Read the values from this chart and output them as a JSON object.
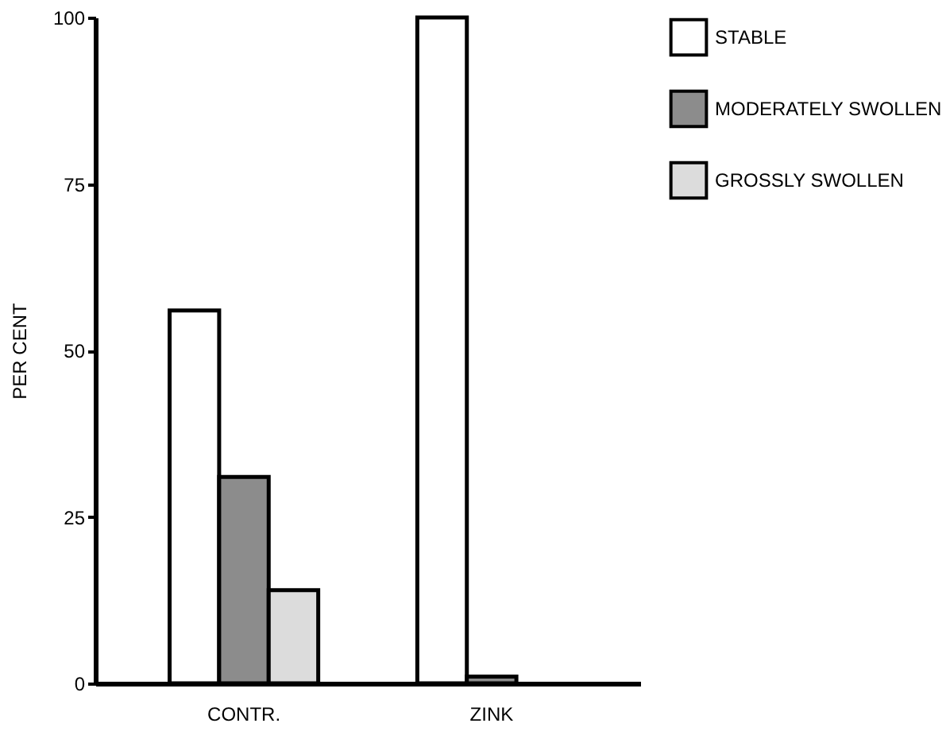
{
  "chart_data": {
    "type": "bar",
    "ylabel": "PER CENT",
    "categories": [
      "CONTR.",
      "ZINK"
    ],
    "series": [
      {
        "name": "STABLE",
        "color": "#ffffff",
        "values": [
          56,
          100
        ]
      },
      {
        "name": "MODERATELY SWOLLEN",
        "color": "#8c8c8c",
        "values": [
          31,
          1
        ]
      },
      {
        "name": "GROSSLY SWOLLEN",
        "color": "#dcdcdc",
        "values": [
          14,
          null
        ]
      }
    ],
    "ylim": [
      0,
      100
    ],
    "yticks": [
      0,
      25,
      50,
      75,
      100
    ],
    "grid": false,
    "legend": "right"
  }
}
